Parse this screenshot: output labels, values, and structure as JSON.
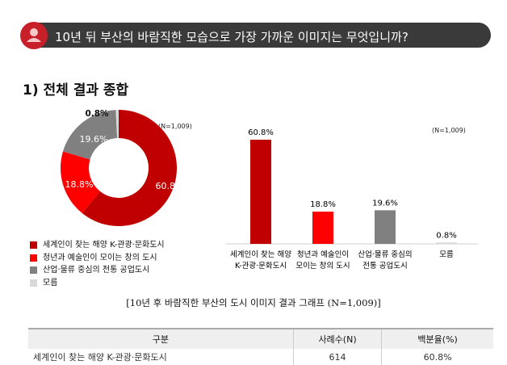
{
  "header": {
    "title": "10년 뒤 부산의 바람직한 모습으로 가장 가까운 이미지는 무엇입니까?",
    "icon": "user-icon"
  },
  "section_title": "1) 전체 결과 종합",
  "caption": "[10년 후 바람직한 부산의 도시 이미지 결과 그래프 (N=1,009)]",
  "chart_data": [
    {
      "type": "pie",
      "donut": true,
      "note": "(N=1,009)",
      "categories": [
        "세계인이 찾는 해양 K-관광·문화도시",
        "청년과 예술인이 모이는 창의 도시",
        "산업·물류 중심의 전통 공업도시",
        "모름"
      ],
      "values": [
        60.8,
        18.8,
        19.6,
        0.8
      ],
      "labels": [
        "60.8%",
        "18.8%",
        "19.6%",
        "0.8%"
      ],
      "colors": [
        "#c00000",
        "#ff0000",
        "#808080",
        "#d9d9d9"
      ],
      "legend": "bottom"
    },
    {
      "type": "bar",
      "note": "(N=1,009)",
      "categories": [
        [
          "세계인이 찾는 해양",
          "K-관광·문화도시"
        ],
        [
          "청년과 예술인이",
          "모이는 창의 도시"
        ],
        [
          "산업·물류 중심의",
          "전통 공업도시"
        ],
        [
          "모름"
        ]
      ],
      "values": [
        60.8,
        18.8,
        19.6,
        0.8
      ],
      "labels": [
        "60.8%",
        "18.8%",
        "19.6%",
        "0.8%"
      ],
      "colors": [
        "#c00000",
        "#ff0000",
        "#808080",
        "#d9d9d9"
      ],
      "ylim": [
        0,
        65
      ]
    }
  ],
  "table": {
    "headers": [
      "구분",
      "사례수(N)",
      "백분율(%)"
    ],
    "rows": [
      [
        "세계인이 찾는 해양 K-관광·문화도시",
        "614",
        "60.8%"
      ]
    ]
  }
}
